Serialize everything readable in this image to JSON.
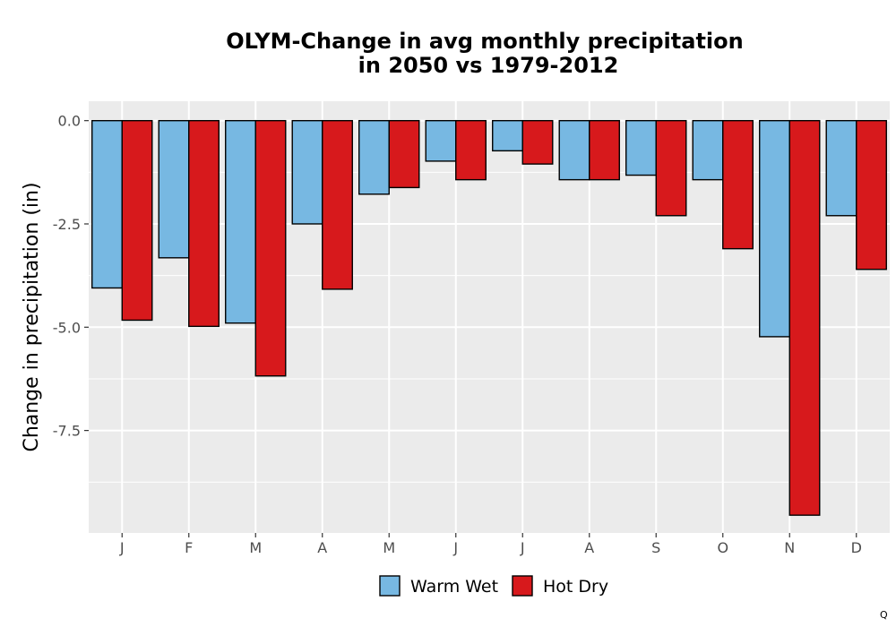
{
  "chart_data": {
    "type": "bar",
    "title": [
      "OLYM-Change in avg monthly precipitation",
      "in 2050 vs 1979-2012"
    ],
    "ylabel": "Change in precipitation (in)",
    "xlabel": "",
    "categories": [
      "J",
      "F",
      "M",
      "A",
      "M",
      "J",
      "J",
      "A",
      "S",
      "O",
      "N",
      "D"
    ],
    "series": [
      {
        "name": "Warm Wet",
        "color": "#77b8e2",
        "values": [
          -4.05,
          -3.32,
          -4.9,
          -2.5,
          -1.78,
          -0.98,
          -0.73,
          -1.43,
          -1.32,
          -1.43,
          -5.23,
          -2.3
        ]
      },
      {
        "name": "Hot Dry",
        "color": "#d7191c",
        "values": [
          -4.83,
          -4.98,
          -6.18,
          -4.08,
          -1.62,
          -1.43,
          -1.05,
          -1.43,
          -2.3,
          -3.1,
          -9.55,
          -3.6
        ]
      }
    ],
    "ylim": [
      -9.98,
      0.47
    ],
    "yticks": [
      0.0,
      -2.5,
      -5.0,
      -7.5
    ],
    "ytick_labels": [
      "0.0",
      "-2.5",
      "-5.0",
      "-7.5"
    ],
    "grid": true,
    "legend": "bottom"
  },
  "corner_mark": "Q"
}
